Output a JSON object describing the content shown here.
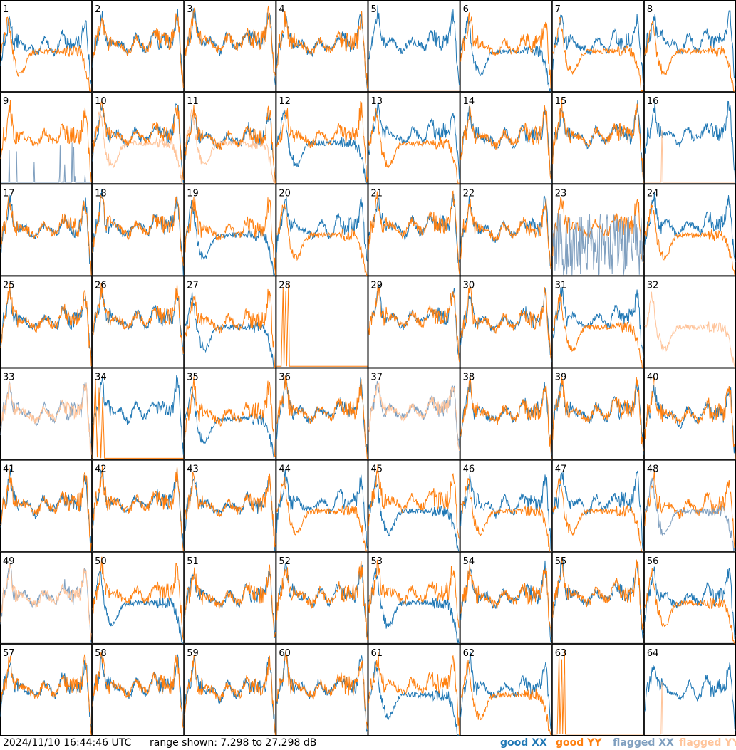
{
  "timestamp": "2024/11/10 16:44:46 UTC",
  "range_text": "range shown: 7.298 to 27.298 dB",
  "legend": [
    {
      "label": "good XX",
      "color": "#1f77b4"
    },
    {
      "label": "good YY",
      "color": "#ff7f0e"
    },
    {
      "label": "flagged XX",
      "color": "#7f9fbf"
    },
    {
      "label": "flagged YY",
      "color": "#ffc49a"
    }
  ],
  "chart_data": {
    "type": "line",
    "title": "",
    "ylim": [
      7.298,
      27.298
    ],
    "grid": "8x8 panels",
    "panel_labels": [
      "1",
      "2",
      "3",
      "4",
      "5",
      "6",
      "7",
      "8",
      "9",
      "10",
      "11",
      "12",
      "13",
      "14",
      "15",
      "16",
      "17",
      "18",
      "19",
      "20",
      "21",
      "22",
      "23",
      "24",
      "25",
      "26",
      "27",
      "28",
      "29",
      "30",
      "31",
      "32",
      "33",
      "34",
      "35",
      "36",
      "37",
      "38",
      "39",
      "40",
      "41",
      "42",
      "43",
      "44",
      "45",
      "46",
      "47",
      "48",
      "49",
      "50",
      "51",
      "52",
      "53",
      "54",
      "55",
      "56",
      "57",
      "58",
      "59",
      "60",
      "61",
      "62",
      "63",
      "64"
    ],
    "panel_types": {
      "1": "dropY",
      "2": "normal",
      "3": "normal",
      "4": "normal",
      "5": "xonly",
      "6": "dropX",
      "7": "dropY",
      "8": "dropY",
      "9": "flagXspike",
      "10": "flagY",
      "11": "flagY",
      "12": "dropX",
      "13": "dropY",
      "14": "normal",
      "15": "normal",
      "16": "xspike",
      "17": "normal",
      "18": "normal",
      "19": "dropX",
      "20": "dropY",
      "21": "normal",
      "22": "normal",
      "23": "flagXnoise",
      "24": "dropY",
      "25": "normal",
      "26": "normal",
      "27": "dropX",
      "28": "yspike",
      "29": "normal",
      "30": "normal",
      "31": "dropY",
      "32": "flagYonly",
      "33": "flagBoth",
      "34": "xYspike",
      "35": "dropX",
      "36": "normal",
      "37": "flagBoth",
      "38": "normal",
      "39": "normal",
      "40": "normal",
      "41": "normal",
      "42": "normal",
      "43": "normal",
      "44": "dropY",
      "45": "dropX",
      "46": "dropY",
      "47": "dropY",
      "48": "flagX",
      "49": "flagBoth",
      "50": "dropX",
      "51": "normal",
      "52": "normal",
      "53": "dropX",
      "54": "normal",
      "55": "normal",
      "56": "dropY",
      "57": "normal",
      "58": "normal",
      "59": "normal",
      "60": "normal",
      "61": "dropX",
      "62": "dropY",
      "63": "yspike",
      "64": "xspike"
    },
    "series": [
      {
        "name": "good XX",
        "color": "#1f77b4"
      },
      {
        "name": "good YY",
        "color": "#ff7f0e"
      },
      {
        "name": "flagged XX",
        "color": "#7f9fbf"
      },
      {
        "name": "flagged YY",
        "color": "#ffc49a"
      }
    ]
  }
}
